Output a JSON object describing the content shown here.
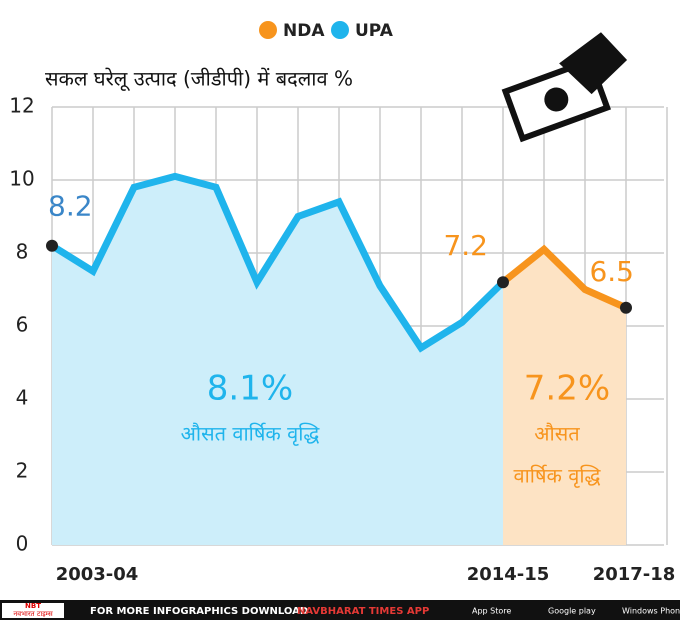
{
  "chart_data": {
    "type": "line",
    "title": "सकल घरेलू उत्पाद (जीडीपी) में बदलाव %",
    "categories": [
      "2003-04",
      null,
      null,
      null,
      null,
      null,
      null,
      null,
      null,
      null,
      null,
      "2014-15",
      null,
      null,
      "2017-18"
    ],
    "series": [
      {
        "name": "UPA",
        "color": "#1fb4ec",
        "fill": "#cdeefa",
        "values": [
          8.2,
          7.5,
          9.8,
          10.1,
          9.8,
          7.2,
          9.0,
          9.4,
          7.1,
          5.4,
          6.1,
          7.2,
          null,
          null,
          null
        ]
      },
      {
        "name": "NDA",
        "color": "#f7941d",
        "fill": "#fde3c4",
        "values": [
          null,
          null,
          null,
          null,
          null,
          null,
          null,
          null,
          null,
          null,
          null,
          7.2,
          8.1,
          7.0,
          6.5
        ]
      }
    ],
    "ylim": [
      0,
      12
    ],
    "yticks": [
      0,
      2,
      4,
      6,
      8,
      10,
      12
    ],
    "grid": true,
    "legend": "top",
    "annotations": [
      {
        "text": "8.1%",
        "sub": [
          "औसत वार्षिक वृद्धि"
        ],
        "color": "#1fb4ec"
      },
      {
        "text": "7.2%",
        "sub": [
          "औसत",
          "वार्षिक वृद्धि"
        ],
        "color": "#f7941d"
      }
    ]
  },
  "footer": {
    "logo_top": "NBT",
    "logo": "नवभारत टाइम्स",
    "text": "FOR MORE INFOGRAPHICS DOWNLOAD",
    "app": "NAVBHARAT TIMES APP",
    "stores": [
      "App Store",
      "Google play",
      "Windows Phone"
    ]
  }
}
